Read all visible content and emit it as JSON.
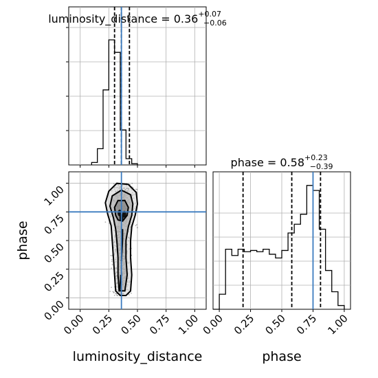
{
  "chart_data": {
    "type": "corner",
    "truths": {
      "luminosity_distance": 0.36,
      "phase": 0.75
    },
    "colors": {
      "truth": "#3b7bbf",
      "hist": "#000000",
      "grid": "#b0b0b0",
      "samples": "#222222"
    },
    "grid": true,
    "panels": [
      {
        "id": "hist-luminosity-distance",
        "type": "histogram",
        "title": {
          "param": "luminosity_distance",
          "median": "0.36",
          "plus": "+0.07",
          "minus": "−0.06"
        },
        "xlim": [
          -0.1,
          1.1
        ],
        "bin_width": 0.05,
        "bin_start": 0.1,
        "counts": [
          0.02,
          0.13,
          0.6,
          1.0,
          0.9,
          0.28,
          0.05,
          0.01
        ],
        "quantiles": [
          0.3,
          0.36,
          0.43
        ],
        "truth": 0.36
      },
      {
        "id": "hist-phase",
        "type": "histogram",
        "title": {
          "param": "phase",
          "median": "0.58",
          "plus": "+0.23",
          "minus": "−0.39"
        },
        "xlim": [
          -0.05,
          1.05
        ],
        "bin_width": 0.05,
        "bin_start": -0.05,
        "counts": [
          0.0,
          0.12,
          0.48,
          0.43,
          0.48,
          0.46,
          0.47,
          0.46,
          0.48,
          0.44,
          0.41,
          0.47,
          0.61,
          0.68,
          0.76,
          0.99,
          0.95,
          0.64,
          0.31,
          0.14,
          0.03
        ],
        "quantiles": [
          0.19,
          0.58,
          0.81
        ],
        "truth": 0.75,
        "ticks": [
          0.0,
          0.25,
          0.5,
          0.75,
          1.0
        ],
        "tick_labels": [
          "0.00",
          "0.25",
          "0.50",
          "0.75",
          "1.00"
        ],
        "xlabel": "phase"
      },
      {
        "id": "joint-luminosity-distance-phase",
        "type": "joint",
        "xlim": [
          -0.1,
          1.1
        ],
        "ylim": [
          -0.1,
          1.1
        ],
        "xticks": [
          0.0,
          0.25,
          0.5,
          0.75,
          1.0
        ],
        "xtick_labels": [
          "0.00",
          "0.25",
          "0.50",
          "0.75",
          "1.00"
        ],
        "yticks": [
          0.0,
          0.25,
          0.5,
          0.75,
          1.0
        ],
        "ytick_labels": [
          "0.00",
          "0.25",
          "0.50",
          "0.75",
          "1.00"
        ],
        "xlabel": "luminosity_distance",
        "ylabel": "phase",
        "truth": [
          0.36,
          0.75
        ],
        "contour_outer": [
          [
            0.35,
            0.02
          ],
          [
            0.4,
            0.02
          ],
          [
            0.44,
            0.06
          ],
          [
            0.45,
            0.2
          ],
          [
            0.44,
            0.35
          ],
          [
            0.44,
            0.5
          ],
          [
            0.45,
            0.62
          ],
          [
            0.48,
            0.72
          ],
          [
            0.5,
            0.82
          ],
          [
            0.49,
            0.92
          ],
          [
            0.42,
            0.99
          ],
          [
            0.32,
            1.0
          ],
          [
            0.25,
            0.93
          ],
          [
            0.22,
            0.83
          ],
          [
            0.24,
            0.73
          ],
          [
            0.27,
            0.63
          ],
          [
            0.28,
            0.5
          ],
          [
            0.29,
            0.35
          ],
          [
            0.3,
            0.2
          ],
          [
            0.31,
            0.06
          ]
        ],
        "contour_inner": [
          [
            0.34,
            0.06
          ],
          [
            0.39,
            0.06
          ],
          [
            0.41,
            0.2
          ],
          [
            0.4,
            0.35
          ],
          [
            0.4,
            0.5
          ],
          [
            0.42,
            0.62
          ],
          [
            0.45,
            0.72
          ],
          [
            0.46,
            0.82
          ],
          [
            0.44,
            0.9
          ],
          [
            0.36,
            0.94
          ],
          [
            0.28,
            0.89
          ],
          [
            0.26,
            0.8
          ],
          [
            0.29,
            0.7
          ],
          [
            0.31,
            0.6
          ],
          [
            0.32,
            0.5
          ],
          [
            0.33,
            0.35
          ],
          [
            0.33,
            0.2
          ]
        ],
        "contour_core": [
          [
            0.33,
            0.68
          ],
          [
            0.37,
            0.67
          ],
          [
            0.41,
            0.72
          ],
          [
            0.42,
            0.79
          ],
          [
            0.39,
            0.85
          ],
          [
            0.33,
            0.85
          ],
          [
            0.3,
            0.79
          ],
          [
            0.31,
            0.72
          ]
        ],
        "ridge_segments": [
          [
            [
              0.36,
              0.32
            ],
            [
              0.37,
              0.5
            ],
            [
              0.37,
              0.6
            ]
          ],
          [
            [
              0.345,
              0.06
            ],
            [
              0.355,
              0.2
            ]
          ]
        ],
        "peak_blobs": [
          [
            0.345,
            0.74
          ],
          [
            0.385,
            0.73
          ],
          [
            0.36,
            0.7
          ]
        ]
      }
    ]
  }
}
